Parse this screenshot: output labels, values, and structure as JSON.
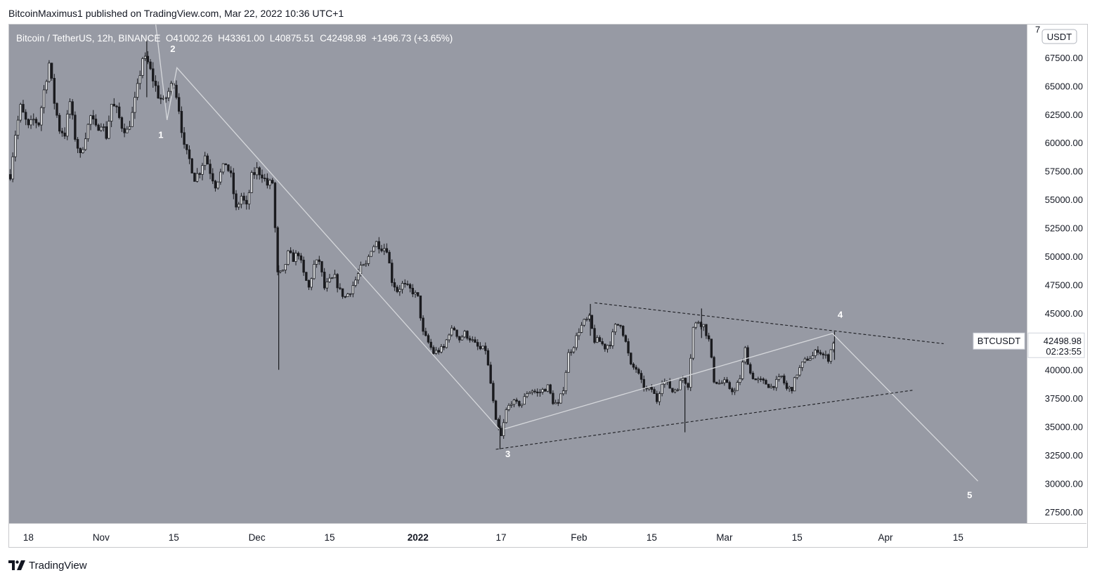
{
  "header": {
    "publish_line": "BitcoinMaximus1 published on TradingView.com, Mar 22, 2022 10:36 UTC+1"
  },
  "footer": {
    "brand": "TradingView",
    "logo_icon": "tradingview-logo-icon"
  },
  "chart_data": {
    "type": "candlestick",
    "symbol_line": {
      "name": "Bitcoin / TetherUS, 12h, BINANCE",
      "open_label": "O",
      "open": "41002.26",
      "high_label": "H",
      "high": "43361.00",
      "low_label": "L",
      "low": "40875.51",
      "close_label": "C",
      "close": "42498.98",
      "change": "+1496.73 (+3.65%)"
    },
    "currency": "USDT",
    "ylim": [
      26500,
      70400
    ],
    "y_ticks": [
      "67500.00",
      "65000.00",
      "62500.00",
      "60000.00",
      "57500.00",
      "55000.00",
      "52500.00",
      "50000.00",
      "47500.00",
      "45000.00",
      "42500.00",
      "40000.00",
      "37500.00",
      "35000.00",
      "32500.00",
      "30000.00",
      "27500.00"
    ],
    "y_tick_partial": "7",
    "x_ticks": [
      {
        "label": "18",
        "day": 0
      },
      {
        "label": "Nov",
        "day": 14
      },
      {
        "label": "15",
        "day": 28
      },
      {
        "label": "Dec",
        "day": 44
      },
      {
        "label": "15",
        "day": 58
      },
      {
        "label": "2022",
        "day": 75
      },
      {
        "label": "17",
        "day": 91
      },
      {
        "label": "Feb",
        "day": 106
      },
      {
        "label": "15",
        "day": 120
      },
      {
        "label": "Mar",
        "day": 134
      },
      {
        "label": "15",
        "day": 148
      },
      {
        "label": "Apr",
        "day": 165
      },
      {
        "label": "15",
        "day": 179
      }
    ],
    "x_range_days": [
      -3.7,
      192.2
    ],
    "last_price": {
      "symbol": "BTCUSDT",
      "price": "42498.98",
      "countdown": "02:23:55",
      "value": 42498.98
    },
    "price_path": [
      [
        -3.5,
        57200
      ],
      [
        -2.5,
        60800
      ],
      [
        -1.5,
        63100
      ],
      [
        0,
        61300
      ],
      [
        1,
        62000
      ],
      [
        2,
        61700
      ],
      [
        3,
        64600
      ],
      [
        4,
        67000
      ],
      [
        5,
        63600
      ],
      [
        6,
        61200
      ],
      [
        7,
        60800
      ],
      [
        8,
        63600
      ],
      [
        9,
        60500
      ],
      [
        10,
        58800
      ],
      [
        11,
        60700
      ],
      [
        12,
        62300
      ],
      [
        13,
        61200
      ],
      [
        14,
        61800
      ],
      [
        15,
        60600
      ],
      [
        16,
        63400
      ],
      [
        17,
        62800
      ],
      [
        18,
        61500
      ],
      [
        19,
        61000
      ],
      [
        20,
        62500
      ],
      [
        21,
        64800
      ],
      [
        22,
        67500
      ],
      [
        23,
        67000
      ],
      [
        24,
        65600
      ],
      [
        25,
        64200
      ],
      [
        26,
        63500
      ],
      [
        27,
        64500
      ],
      [
        28,
        65500
      ],
      [
        29,
        63000
      ],
      [
        30,
        59500
      ],
      [
        31,
        58500
      ],
      [
        32,
        56900
      ],
      [
        33,
        57500
      ],
      [
        34,
        58900
      ],
      [
        35,
        57500
      ],
      [
        36,
        56300
      ],
      [
        37,
        57300
      ],
      [
        38,
        58200
      ],
      [
        39,
        57000
      ],
      [
        40,
        54100
      ],
      [
        41,
        55300
      ],
      [
        42,
        54300
      ],
      [
        43,
        57000
      ],
      [
        44,
        57600
      ],
      [
        45,
        57200
      ],
      [
        46,
        56300
      ],
      [
        47,
        56500
      ],
      [
        48,
        48400
      ],
      [
        49,
        48500
      ],
      [
        50,
        50200
      ],
      [
        51,
        49800
      ],
      [
        52,
        50300
      ],
      [
        53,
        48400
      ],
      [
        54,
        47200
      ],
      [
        55,
        49200
      ],
      [
        56,
        49600
      ],
      [
        57,
        47200
      ],
      [
        58,
        47800
      ],
      [
        59,
        48100
      ],
      [
        60,
        46900
      ],
      [
        61,
        46400
      ],
      [
        62,
        47000
      ],
      [
        63,
        47900
      ],
      [
        64,
        48900
      ],
      [
        65,
        49200
      ],
      [
        66,
        50700
      ],
      [
        67,
        51200
      ],
      [
        68,
        50800
      ],
      [
        69,
        50700
      ],
      [
        70,
        47900
      ],
      [
        71,
        47000
      ],
      [
        72,
        47500
      ],
      [
        73,
        47200
      ],
      [
        74,
        46900
      ],
      [
        75,
        46300
      ],
      [
        76,
        43200
      ],
      [
        77,
        42400
      ],
      [
        78,
        41500
      ],
      [
        79,
        41700
      ],
      [
        80,
        41900
      ],
      [
        81,
        43300
      ],
      [
        82,
        43600
      ],
      [
        83,
        42700
      ],
      [
        84,
        43200
      ],
      [
        85,
        42800
      ],
      [
        86,
        42200
      ],
      [
        87,
        41800
      ],
      [
        88,
        41800
      ],
      [
        89,
        38800
      ],
      [
        90,
        35400
      ],
      [
        91,
        34100
      ],
      [
        92,
        36400
      ],
      [
        93,
        37200
      ],
      [
        94,
        37000
      ],
      [
        95,
        37000
      ],
      [
        96,
        38000
      ],
      [
        97,
        38200
      ],
      [
        98,
        37900
      ],
      [
        99,
        38200
      ],
      [
        100,
        38500
      ],
      [
        101,
        37200
      ],
      [
        102,
        36900
      ],
      [
        103,
        38400
      ],
      [
        104,
        41400
      ],
      [
        105,
        42200
      ],
      [
        106,
        43500
      ],
      [
        107,
        44200
      ],
      [
        108,
        44500
      ],
      [
        109,
        42600
      ],
      [
        110,
        42500
      ],
      [
        111,
        42000
      ],
      [
        112,
        42400
      ],
      [
        113,
        43800
      ],
      [
        114,
        44100
      ],
      [
        115,
        42400
      ],
      [
        116,
        40300
      ],
      [
        117,
        40100
      ],
      [
        118,
        38900
      ],
      [
        119,
        38200
      ],
      [
        120,
        38300
      ],
      [
        121,
        37300
      ],
      [
        122,
        39000
      ],
      [
        123,
        38800
      ],
      [
        124,
        38100
      ],
      [
        125,
        38500
      ],
      [
        126,
        39300
      ],
      [
        127,
        38700
      ],
      [
        128,
        43700
      ],
      [
        129,
        44300
      ],
      [
        130,
        43900
      ],
      [
        131,
        42600
      ],
      [
        132,
        39100
      ],
      [
        133,
        38800
      ],
      [
        134,
        38900
      ],
      [
        135,
        38400
      ],
      [
        136,
        38100
      ],
      [
        137,
        39300
      ],
      [
        138,
        41800
      ],
      [
        139,
        39700
      ],
      [
        140,
        39100
      ],
      [
        141,
        39000
      ],
      [
        142,
        38800
      ],
      [
        143,
        38500
      ],
      [
        144,
        38900
      ],
      [
        145,
        39400
      ],
      [
        146,
        38300
      ],
      [
        147,
        38400
      ],
      [
        148,
        39700
      ],
      [
        149,
        40500
      ],
      [
        150,
        41000
      ],
      [
        151,
        41200
      ],
      [
        152,
        41800
      ],
      [
        153,
        41300
      ],
      [
        154,
        41000
      ],
      [
        155,
        42500
      ]
    ],
    "wicks": [
      {
        "day": 48.2,
        "high": 49200,
        "low": 40000
      },
      {
        "day": 22.8,
        "high": 69000,
        "low": 64000
      },
      {
        "day": 90.8,
        "high": 36000,
        "low": 33000
      },
      {
        "day": 126.4,
        "high": 38600,
        "low": 34500
      },
      {
        "day": 108.2,
        "high": 45800,
        "low": 43000
      },
      {
        "day": 129.6,
        "high": 45400,
        "low": 42800
      },
      {
        "day": 155.2,
        "high": 43361,
        "low": 40875
      }
    ],
    "annotations": {
      "wave_labels": [
        {
          "text": "1",
          "day": 25.5,
          "price": 60400
        },
        {
          "text": "2",
          "day": 27.8,
          "price": 68000
        },
        {
          "text": "3",
          "day": 92.3,
          "price": 32300
        },
        {
          "text": "4",
          "day": 156.3,
          "price": 44600
        },
        {
          "text": "5",
          "day": 181.2,
          "price": 28700
        }
      ],
      "solid_lines": [
        [
          [
            24.5,
            70500
          ],
          [
            26.7,
            62000
          ],
          [
            28.6,
            66600
          ],
          [
            90.6,
            34800
          ]
        ],
        [
          [
            91.7,
            34800
          ],
          [
            154.8,
            43200
          ],
          [
            182.8,
            30200
          ]
        ]
      ],
      "dashed_lines": [
        [
          [
            109,
            45900
          ],
          [
            176.2,
            42300
          ]
        ],
        [
          [
            90,
            33000
          ],
          [
            170.2,
            38200
          ]
        ]
      ]
    },
    "grid": false
  }
}
